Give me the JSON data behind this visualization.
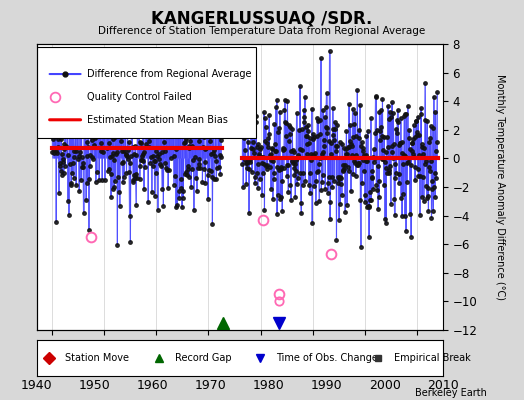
{
  "title": "KANGERLUSSUAQ /SDR.",
  "subtitle": "Difference of Station Temperature Data from Regional Average",
  "ylabel": "Monthly Temperature Anomaly Difference (°C)",
  "xlim": [
    1937,
    2015
  ],
  "ylim": [
    -12,
    8
  ],
  "yticks": [
    -12,
    -10,
    -8,
    -6,
    -4,
    -2,
    0,
    2,
    4,
    6,
    8
  ],
  "xticks": [
    1940,
    1950,
    1960,
    1970,
    1980,
    1990,
    2000,
    2010
  ],
  "bias_before": 0.75,
  "bias_after": 0.05,
  "bias_split": 1978.0,
  "gap_start": 1972.5,
  "gap_end": 1976.5,
  "line_color": "#4444ff",
  "line_alpha": 0.6,
  "dot_color": "#111111",
  "dot_size": 2.5,
  "qc_fail_color": "#ff69b4",
  "bias_line_color": "#ee0000",
  "bias_lw": 3.0,
  "station_move_color": "#cc0000",
  "record_gap_color": "#006600",
  "tobs_color": "#0000cc",
  "empirical_color": "#333333",
  "station_move_x": 1940.0,
  "record_gap_x": 1972.75,
  "tobs_change_x": 1983.5,
  "qc_fails": [
    [
      1947.5,
      4.5
    ],
    [
      1947.5,
      -5.5
    ],
    [
      1980.5,
      -4.3
    ],
    [
      1993.5,
      -6.7
    ],
    [
      1983.5,
      -9.5
    ]
  ],
  "seed": 99,
  "data_start": 1940,
  "data_end1": 1972.5,
  "data_start2": 1976.5,
  "data_end2": 2014
}
